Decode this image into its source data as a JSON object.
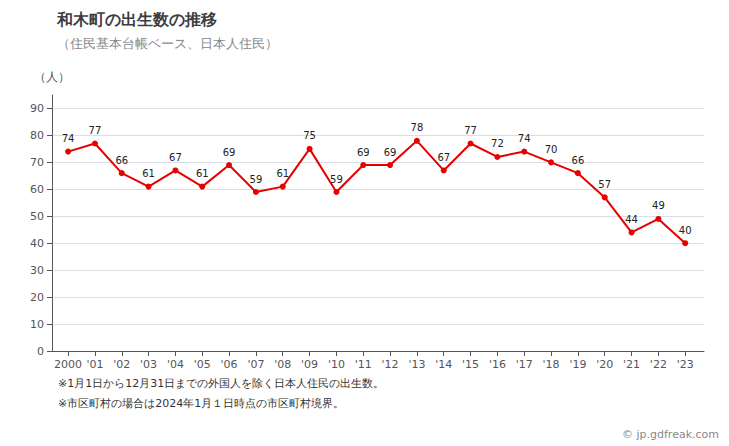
{
  "chart_data": {
    "type": "line",
    "title": "和木町の出生数の推移",
    "subtitle": "（住民基本台帳ベース、日本人住民）",
    "ylabel": "（人）",
    "x": [
      2000,
      2001,
      2002,
      2003,
      2004,
      2005,
      2006,
      2007,
      2008,
      2009,
      2010,
      2011,
      2012,
      2013,
      2014,
      2015,
      2016,
      2017,
      2018,
      2019,
      2020,
      2021,
      2022,
      2023
    ],
    "values": [
      74,
      77,
      66,
      61,
      67,
      61,
      69,
      59,
      61,
      75,
      59,
      69,
      69,
      78,
      67,
      77,
      72,
      74,
      70,
      66,
      57,
      44,
      49,
      40
    ],
    "color": "#e60000",
    "marker": "circle",
    "data_labels": true,
    "grid": true,
    "xlim": [
      1999.4,
      2023.7
    ],
    "xticks": [
      2000,
      {
        "value": 2001,
        "label": "'01"
      },
      {
        "value": 2002,
        "label": "'02"
      },
      {
        "value": 2003,
        "label": "'03"
      },
      {
        "value": 2004,
        "label": "'04"
      },
      {
        "value": 2005,
        "label": "'05"
      },
      {
        "value": 2006,
        "label": "'06"
      },
      {
        "value": 2007,
        "label": "'07"
      },
      {
        "value": 2008,
        "label": "'08"
      },
      {
        "value": 2009,
        "label": "'09"
      },
      {
        "value": 2010,
        "label": "'10"
      },
      {
        "value": 2011,
        "label": "'11"
      },
      {
        "value": 2012,
        "label": "'12"
      },
      {
        "value": 2013,
        "label": "'13"
      },
      {
        "value": 2014,
        "label": "'14"
      },
      {
        "value": 2015,
        "label": "'15"
      },
      {
        "value": 2016,
        "label": "'16"
      },
      {
        "value": 2017,
        "label": "'17"
      },
      {
        "value": 2018,
        "label": "'18"
      },
      {
        "value": 2019,
        "label": "'19"
      },
      {
        "value": 2020,
        "label": "'20"
      },
      {
        "value": 2021,
        "label": "'21"
      },
      {
        "value": 2022,
        "label": "'22"
      },
      {
        "value": 2023,
        "label": "'23"
      }
    ],
    "ylim": [
      0,
      95
    ],
    "yticks": [
      0,
      10,
      20,
      30,
      40,
      50,
      60,
      70,
      80,
      90
    ],
    "annotations": [
      "※1月1日から12月31日までの外国人を除く日本人住民の出生数。",
      "※市区町村の場合は2024年1月１日時点の市区町村境界。",
      "© jp.gdfreak.com"
    ]
  }
}
